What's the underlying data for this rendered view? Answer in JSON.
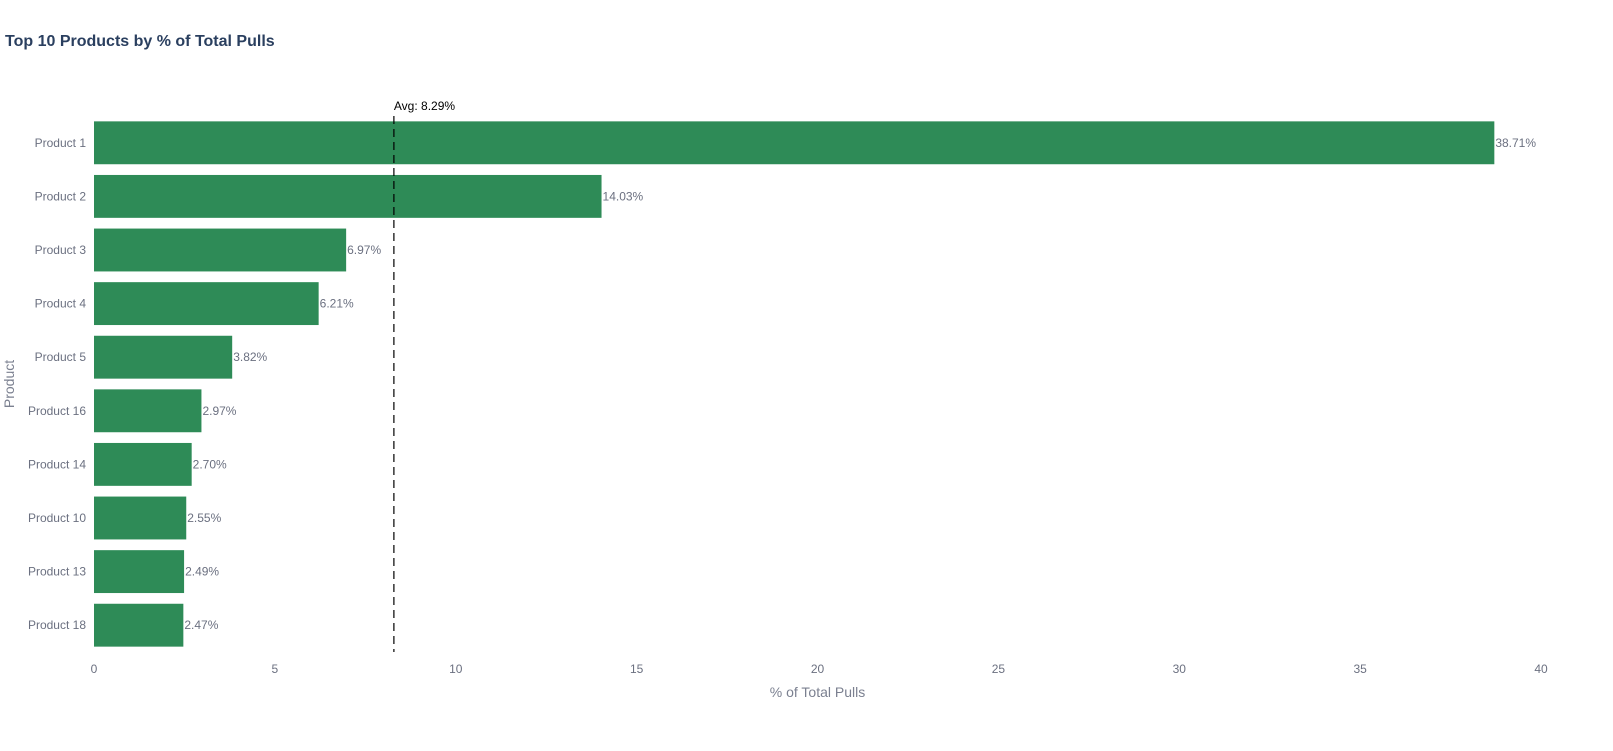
{
  "chart_data": {
    "type": "bar",
    "orientation": "horizontal",
    "title": "Top 10 Products by % of Total Pulls",
    "xlabel": "% of Total Pulls",
    "ylabel": "Product",
    "xlim": [
      0,
      40
    ],
    "x_ticks": [
      0,
      5,
      10,
      15,
      20,
      25,
      30,
      35,
      40
    ],
    "grid": false,
    "categories": [
      "Product 1",
      "Product 2",
      "Product 3",
      "Product 4",
      "Product 5",
      "Product 16",
      "Product 14",
      "Product 10",
      "Product 13",
      "Product 18"
    ],
    "values": [
      38.71,
      14.03,
      6.97,
      6.21,
      3.82,
      2.97,
      2.7,
      2.55,
      2.49,
      2.47
    ],
    "data_labels": [
      "38.71%",
      "14.03%",
      "6.97%",
      "6.21%",
      "3.82%",
      "2.97%",
      "2.70%",
      "2.55%",
      "2.49%",
      "2.47%"
    ],
    "bar_color": "#2e8b57",
    "reference_line": {
      "value": 8.29,
      "label": "Avg: 8.29%",
      "style": "dashed",
      "color": "#000000"
    }
  }
}
